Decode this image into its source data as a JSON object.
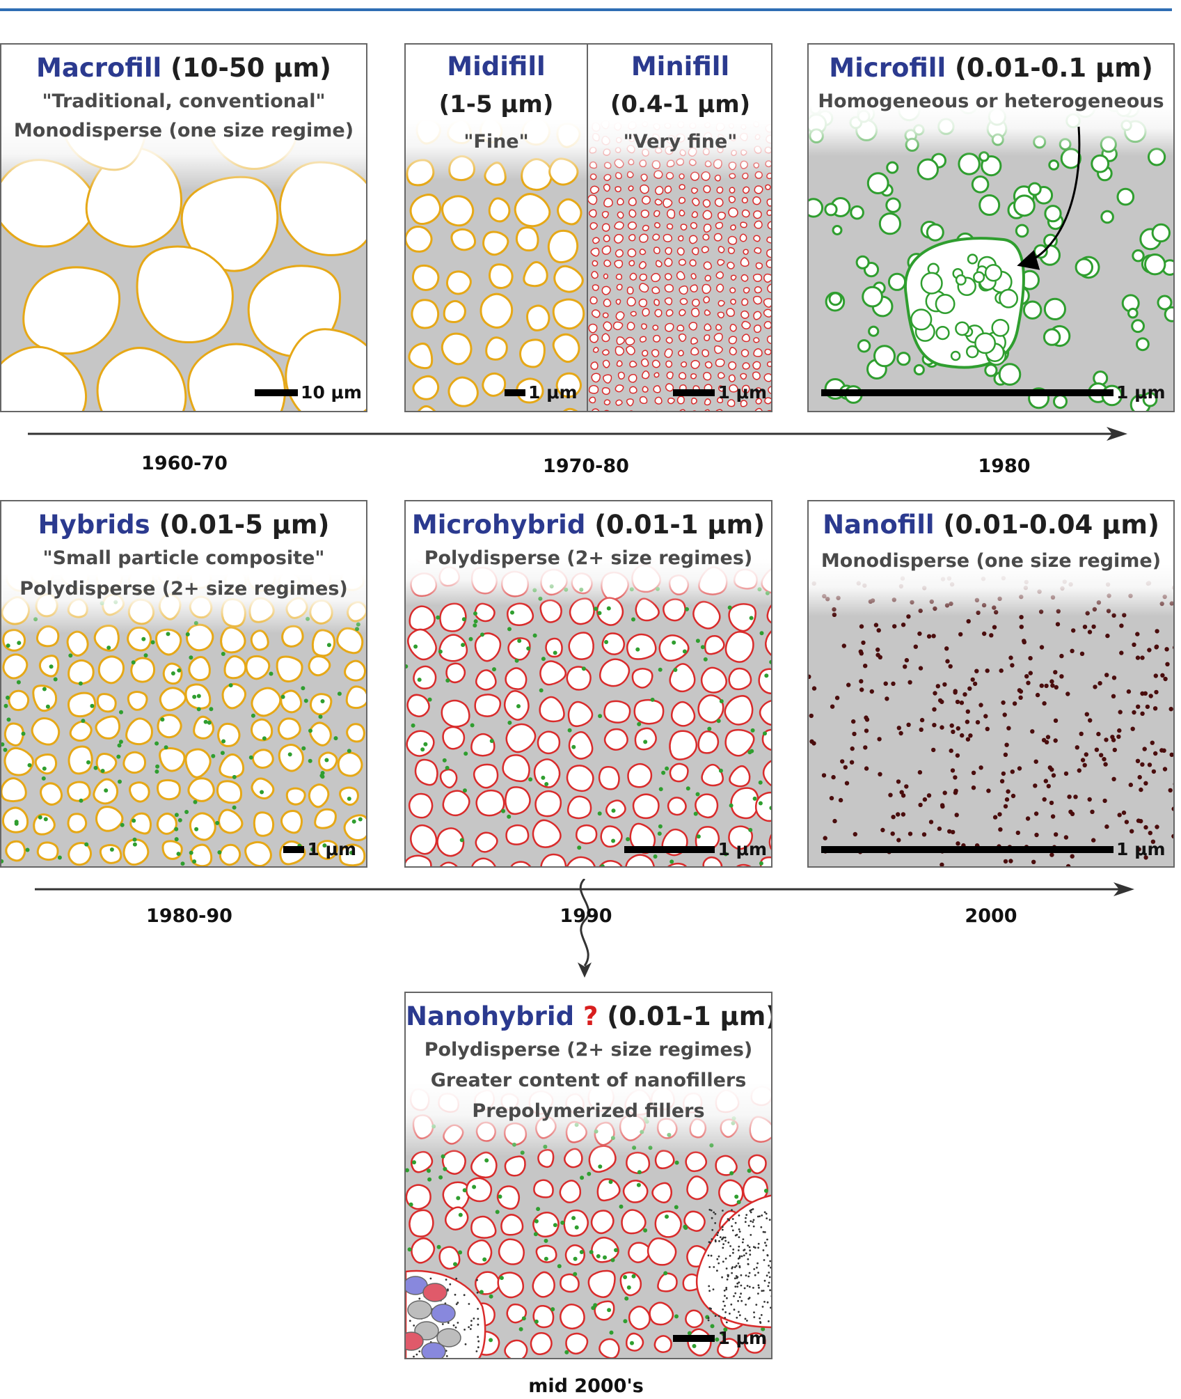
{
  "panels": {
    "macrofill": {
      "name": "Macrofill",
      "size": " (10-50 μm)",
      "line1": "\"Traditional, conventional\"",
      "line2": "Monodisperse (one size regime)",
      "scale": "10 μm"
    },
    "midifill": {
      "name": "Midifill",
      "size": "(1-5 μm)",
      "desc": "\"Fine\"",
      "scale": "1 μm"
    },
    "minifill": {
      "name": "Minifill",
      "size": "(0.4-1 μm)",
      "desc": "\"Very fine\"",
      "scale": "1 μm"
    },
    "microfill": {
      "name": "Microfill",
      "size": " (0.01-0.1 μm)",
      "line1": "Homogeneous or heterogeneous",
      "scale": "1 μm"
    },
    "hybrids": {
      "name": "Hybrids",
      "size": " (0.01-5 μm)",
      "line1": "\"Small particle composite\"",
      "line2": "Polydisperse (2+ size regimes)",
      "scale": "1 μm"
    },
    "microhybrid": {
      "name": "Microhybrid",
      "size": " (0.01-1 μm)",
      "line1": "Polydisperse (2+ size regimes)",
      "scale": "1 μm"
    },
    "nanofill": {
      "name": "Nanofill",
      "size": " (0.01-0.04 μm)",
      "line1": "Monodisperse (one size regime)",
      "scale": "1 μm"
    },
    "nanohybrid": {
      "name": "Nanohybrid",
      "qmark": "?",
      "size": " (0.01-1 μm)",
      "line1": "Polydisperse (2+ size regimes)",
      "line2": "Greater content of nanofillers",
      "line3": "Prepolymerized fillers",
      "scale": "1 μm"
    }
  },
  "timeline": {
    "row1": [
      "1960-70",
      "1970-80",
      "1980"
    ],
    "row2": [
      "1980-90",
      "1990",
      "2000"
    ],
    "row3": "mid 2000's"
  },
  "colors": {
    "macro_outline": "#e6a817",
    "micro_outline": "#d92b2b",
    "microfill_green": "#2f9e2f",
    "nano_dot": "#4a0d0d",
    "matrix_gray": "#c6c6c6",
    "name_blue": "#2b3a8f",
    "top_rule": "#2e6db4"
  }
}
